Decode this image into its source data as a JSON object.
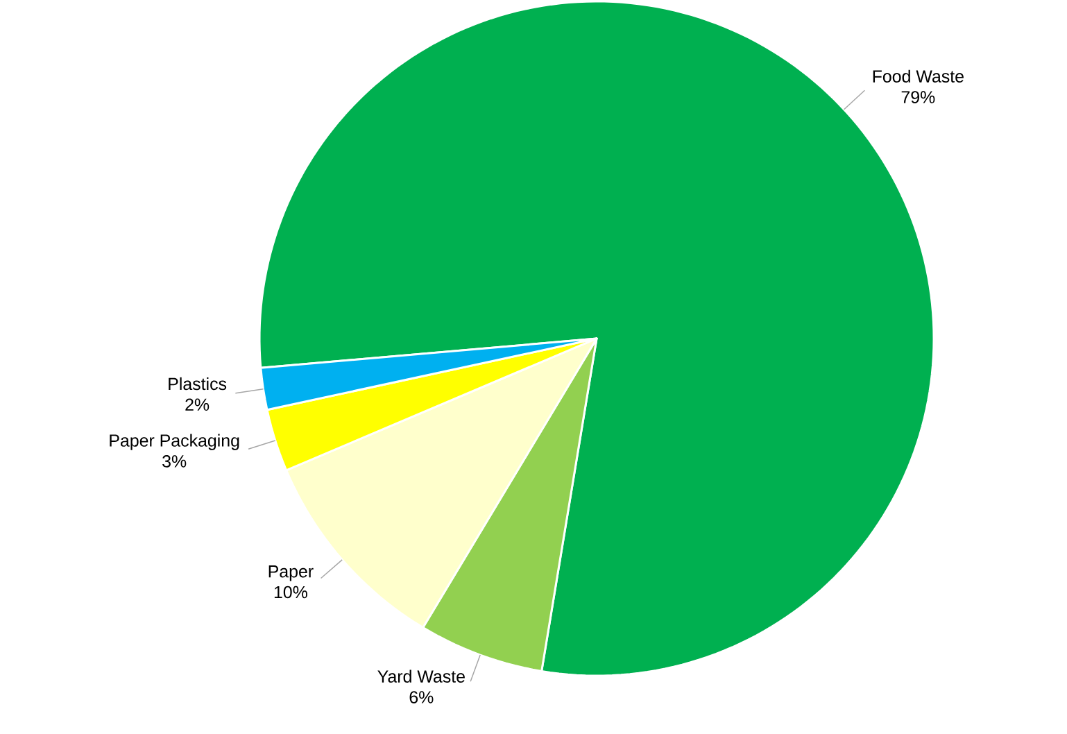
{
  "chart_data": {
    "type": "pie",
    "categories": [
      "Food Waste",
      "Yard Waste",
      "Paper",
      "Paper Packaging",
      "Plastics"
    ],
    "values": [
      79,
      6,
      10,
      3,
      2
    ],
    "value_labels": [
      "79%",
      "6%",
      "10%",
      "3%",
      "2%"
    ],
    "colors": [
      "#00b050",
      "#92d050",
      "#ffffcc",
      "#ffff00",
      "#00b0f0"
    ]
  }
}
